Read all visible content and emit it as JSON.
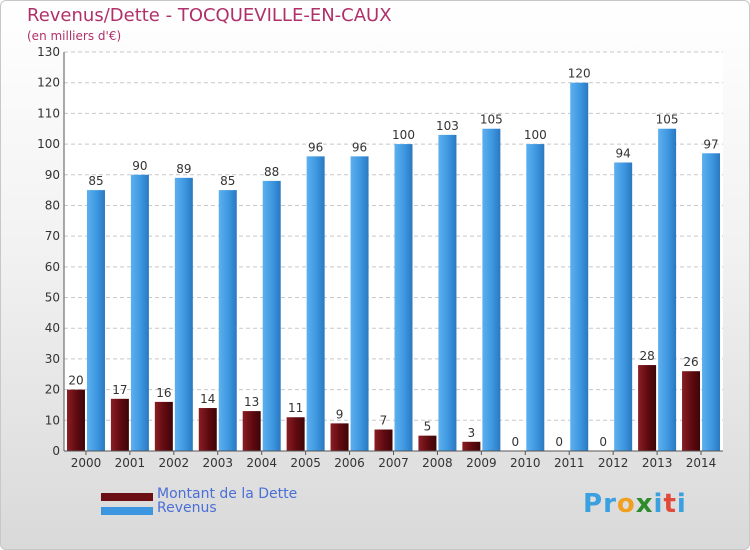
{
  "header": {
    "title": "Revenus/Dette - TOCQUEVILLE-EN-CAUX",
    "subtitle": "(en milliers d'€)"
  },
  "legend": {
    "items": [
      {
        "label": "Montant de la Dette",
        "color": "#6b0f14"
      },
      {
        "label": "Revenus",
        "color": "#3d97e0"
      }
    ]
  },
  "logo": {
    "letters": [
      "P",
      "r",
      "o",
      "x",
      "i",
      "t",
      "i"
    ],
    "colors": [
      "#3aa0e0",
      "#3aa0e0",
      "#f0a020",
      "#2e8b2e",
      "#3aa0e0",
      "#e04a3a",
      "#3aa0e0"
    ]
  },
  "chart_data": {
    "type": "bar",
    "categories": [
      "2000",
      "2001",
      "2002",
      "2003",
      "2004",
      "2005",
      "2006",
      "2007",
      "2008",
      "2009",
      "2010",
      "2011",
      "2012",
      "2013",
      "2014"
    ],
    "series": [
      {
        "name": "Montant de la Dette",
        "color": "#6b0f14",
        "values": [
          20,
          17,
          16,
          14,
          13,
          11,
          9,
          7,
          5,
          3,
          0,
          0,
          0,
          28,
          26
        ]
      },
      {
        "name": "Revenus",
        "color": "#3d97e0",
        "values": [
          85,
          90,
          89,
          85,
          88,
          96,
          96,
          100,
          103,
          105,
          100,
          120,
          94,
          105,
          97
        ]
      }
    ],
    "yticks": [
      "0",
      "10",
      "20",
      "30",
      "40",
      "50",
      "60",
      "70",
      "80",
      "90",
      "100",
      "110",
      "120",
      "130"
    ],
    "ylim": [
      0,
      130
    ],
    "grid": true,
    "legend_position": "bottom-left"
  }
}
